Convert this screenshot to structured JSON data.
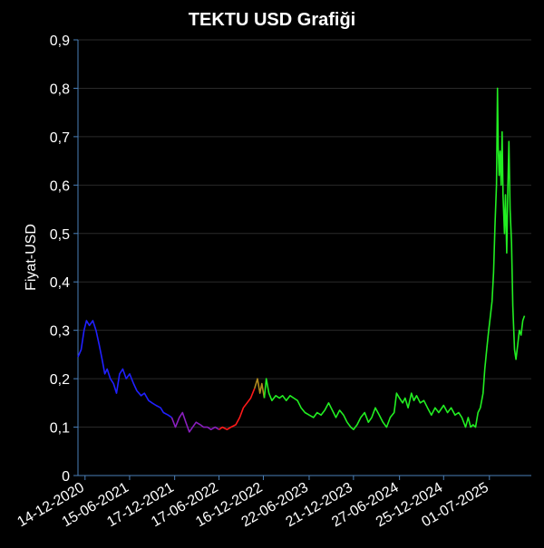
{
  "chart_data": {
    "type": "line",
    "title": "TEKTU USD Grafiği",
    "xlabel": "",
    "ylabel": "Fiyat-USD",
    "ylim": [
      0,
      0.9
    ],
    "y_ticks": [
      "0",
      "0,1",
      "0,2",
      "0,3",
      "0,4",
      "0,5",
      "0,6",
      "0,7",
      "0,8",
      "0,9"
    ],
    "x_range": [
      "2020-11-15",
      "2025-12-20"
    ],
    "x_ticks": [
      {
        "date": "2020-12-14",
        "label": "14-12-2020"
      },
      {
        "date": "2021-06-15",
        "label": "15-06-2021"
      },
      {
        "date": "2021-12-17",
        "label": "17-12-2021"
      },
      {
        "date": "2022-06-17",
        "label": "17-06-2022"
      },
      {
        "date": "2022-12-16",
        "label": "16-12-2022"
      },
      {
        "date": "2023-06-22",
        "label": "22-06-2023"
      },
      {
        "date": "2023-12-21",
        "label": "21-12-2023"
      },
      {
        "date": "2024-06-27",
        "label": "27-06-2024"
      },
      {
        "date": "2024-12-25",
        "label": "25-12-2024"
      },
      {
        "date": "2025-07-01",
        "label": "01-07-2025"
      }
    ],
    "grid": true,
    "colors": {
      "background": "#000000",
      "grid": "#2a2a2a",
      "axis": "#4a7fb8",
      "text": "#ffffff",
      "blue": "#2020ff",
      "purple": "#8a1fbf",
      "red": "#ff1a1a",
      "olive": "#b08a1e",
      "green": "#22ee22"
    },
    "series": [
      {
        "color": "blue",
        "points": [
          [
            "2020-11-15",
            0.245
          ],
          [
            "2020-11-28",
            0.26
          ],
          [
            "2020-12-10",
            0.3
          ],
          [
            "2020-12-20",
            0.32
          ],
          [
            "2021-01-01",
            0.31
          ],
          [
            "2021-01-15",
            0.32
          ],
          [
            "2021-01-28",
            0.3
          ],
          [
            "2021-02-10",
            0.27
          ],
          [
            "2021-02-22",
            0.24
          ],
          [
            "2021-03-05",
            0.21
          ],
          [
            "2021-03-15",
            0.22
          ],
          [
            "2021-03-28",
            0.2
          ],
          [
            "2021-04-10",
            0.19
          ],
          [
            "2021-04-22",
            0.17
          ],
          [
            "2021-05-05",
            0.21
          ],
          [
            "2021-05-18",
            0.22
          ],
          [
            "2021-06-01",
            0.2
          ],
          [
            "2021-06-15",
            0.21
          ],
          [
            "2021-07-01",
            0.19
          ],
          [
            "2021-07-15",
            0.175
          ],
          [
            "2021-08-01",
            0.165
          ],
          [
            "2021-08-15",
            0.17
          ],
          [
            "2021-09-01",
            0.155
          ],
          [
            "2021-09-15",
            0.15
          ],
          [
            "2021-10-01",
            0.145
          ],
          [
            "2021-10-20",
            0.14
          ],
          [
            "2021-11-01",
            0.13
          ],
          [
            "2021-11-20",
            0.125
          ],
          [
            "2021-12-05",
            0.12
          ]
        ]
      },
      {
        "color": "purple",
        "points": [
          [
            "2021-12-05",
            0.12
          ],
          [
            "2021-12-20",
            0.1
          ],
          [
            "2022-01-05",
            0.12
          ],
          [
            "2022-01-18",
            0.13
          ],
          [
            "2022-02-01",
            0.11
          ],
          [
            "2022-02-15",
            0.09
          ],
          [
            "2022-03-01",
            0.1
          ],
          [
            "2022-03-15",
            0.11
          ],
          [
            "2022-04-01",
            0.105
          ],
          [
            "2022-04-15",
            0.1
          ],
          [
            "2022-05-01",
            0.1
          ],
          [
            "2022-05-15",
            0.095
          ],
          [
            "2022-06-01",
            0.1
          ],
          [
            "2022-06-17",
            0.095
          ]
        ]
      },
      {
        "color": "red",
        "points": [
          [
            "2022-06-17",
            0.095
          ],
          [
            "2022-07-01",
            0.1
          ],
          [
            "2022-07-20",
            0.095
          ],
          [
            "2022-08-05",
            0.1
          ],
          [
            "2022-08-25",
            0.105
          ],
          [
            "2022-09-10",
            0.12
          ],
          [
            "2022-09-25",
            0.14
          ],
          [
            "2022-10-10",
            0.15
          ],
          [
            "2022-10-25",
            0.16
          ],
          [
            "2022-11-10",
            0.18
          ]
        ]
      },
      {
        "color": "olive",
        "points": [
          [
            "2022-11-10",
            0.18
          ],
          [
            "2022-11-22",
            0.2
          ],
          [
            "2022-12-02",
            0.17
          ],
          [
            "2022-12-10",
            0.19
          ],
          [
            "2022-12-20",
            0.16
          ]
        ]
      },
      {
        "color": "green",
        "points": [
          [
            "2022-12-20",
            0.16
          ],
          [
            "2022-12-28",
            0.2
          ],
          [
            "2023-01-08",
            0.17
          ],
          [
            "2023-01-20",
            0.155
          ],
          [
            "2023-02-05",
            0.165
          ],
          [
            "2023-02-20",
            0.16
          ],
          [
            "2023-03-05",
            0.165
          ],
          [
            "2023-03-20",
            0.155
          ],
          [
            "2023-04-05",
            0.165
          ],
          [
            "2023-04-20",
            0.16
          ],
          [
            "2023-05-05",
            0.155
          ],
          [
            "2023-05-20",
            0.14
          ],
          [
            "2023-06-05",
            0.13
          ],
          [
            "2023-06-22",
            0.125
          ],
          [
            "2023-07-10",
            0.12
          ],
          [
            "2023-07-25",
            0.13
          ],
          [
            "2023-08-10",
            0.125
          ],
          [
            "2023-08-25",
            0.135
          ],
          [
            "2023-09-10",
            0.15
          ],
          [
            "2023-09-25",
            0.135
          ],
          [
            "2023-10-10",
            0.12
          ],
          [
            "2023-10-25",
            0.135
          ],
          [
            "2023-11-10",
            0.125
          ],
          [
            "2023-11-25",
            0.11
          ],
          [
            "2023-12-10",
            0.1
          ],
          [
            "2023-12-21",
            0.095
          ],
          [
            "2024-01-05",
            0.105
          ],
          [
            "2024-01-20",
            0.12
          ],
          [
            "2024-02-05",
            0.13
          ],
          [
            "2024-02-20",
            0.11
          ],
          [
            "2024-03-05",
            0.12
          ],
          [
            "2024-03-20",
            0.14
          ],
          [
            "2024-04-05",
            0.125
          ],
          [
            "2024-04-20",
            0.11
          ],
          [
            "2024-05-05",
            0.1
          ],
          [
            "2024-05-20",
            0.12
          ],
          [
            "2024-06-05",
            0.13
          ],
          [
            "2024-06-15",
            0.17
          ],
          [
            "2024-06-27",
            0.16
          ],
          [
            "2024-07-10",
            0.15
          ],
          [
            "2024-07-20",
            0.16
          ],
          [
            "2024-08-01",
            0.14
          ],
          [
            "2024-08-15",
            0.17
          ],
          [
            "2024-08-25",
            0.155
          ],
          [
            "2024-09-05",
            0.165
          ],
          [
            "2024-09-20",
            0.15
          ],
          [
            "2024-10-05",
            0.155
          ],
          [
            "2024-10-20",
            0.14
          ],
          [
            "2024-11-05",
            0.125
          ],
          [
            "2024-11-20",
            0.14
          ],
          [
            "2024-12-05",
            0.13
          ],
          [
            "2024-12-25",
            0.145
          ],
          [
            "2025-01-10",
            0.13
          ],
          [
            "2025-01-25",
            0.14
          ],
          [
            "2025-02-10",
            0.125
          ],
          [
            "2025-02-25",
            0.13
          ],
          [
            "2025-03-10",
            0.12
          ],
          [
            "2025-03-25",
            0.1
          ],
          [
            "2025-04-05",
            0.12
          ],
          [
            "2025-04-15",
            0.1
          ],
          [
            "2025-04-25",
            0.105
          ],
          [
            "2025-05-05",
            0.1
          ],
          [
            "2025-05-15",
            0.13
          ],
          [
            "2025-05-25",
            0.14
          ],
          [
            "2025-06-05",
            0.17
          ],
          [
            "2025-06-12",
            0.22
          ],
          [
            "2025-06-20",
            0.26
          ],
          [
            "2025-06-28",
            0.3
          ],
          [
            "2025-07-05",
            0.33
          ],
          [
            "2025-07-12",
            0.36
          ],
          [
            "2025-07-18",
            0.42
          ],
          [
            "2025-07-24",
            0.52
          ],
          [
            "2025-07-30",
            0.6
          ],
          [
            "2025-08-03",
            0.8
          ],
          [
            "2025-08-06",
            0.68
          ],
          [
            "2025-08-10",
            0.62
          ],
          [
            "2025-08-14",
            0.67
          ],
          [
            "2025-08-18",
            0.6
          ],
          [
            "2025-08-22",
            0.71
          ],
          [
            "2025-08-26",
            0.58
          ],
          [
            "2025-09-01",
            0.5
          ],
          [
            "2025-09-05",
            0.58
          ],
          [
            "2025-09-10",
            0.46
          ],
          [
            "2025-09-15",
            0.6
          ],
          [
            "2025-09-19",
            0.69
          ],
          [
            "2025-09-24",
            0.55
          ],
          [
            "2025-09-30",
            0.48
          ],
          [
            "2025-10-05",
            0.35
          ],
          [
            "2025-10-12",
            0.26
          ],
          [
            "2025-10-18",
            0.24
          ],
          [
            "2025-10-25",
            0.27
          ],
          [
            "2025-11-01",
            0.3
          ],
          [
            "2025-11-08",
            0.29
          ],
          [
            "2025-11-15",
            0.32
          ],
          [
            "2025-11-22",
            0.33
          ]
        ]
      }
    ]
  }
}
